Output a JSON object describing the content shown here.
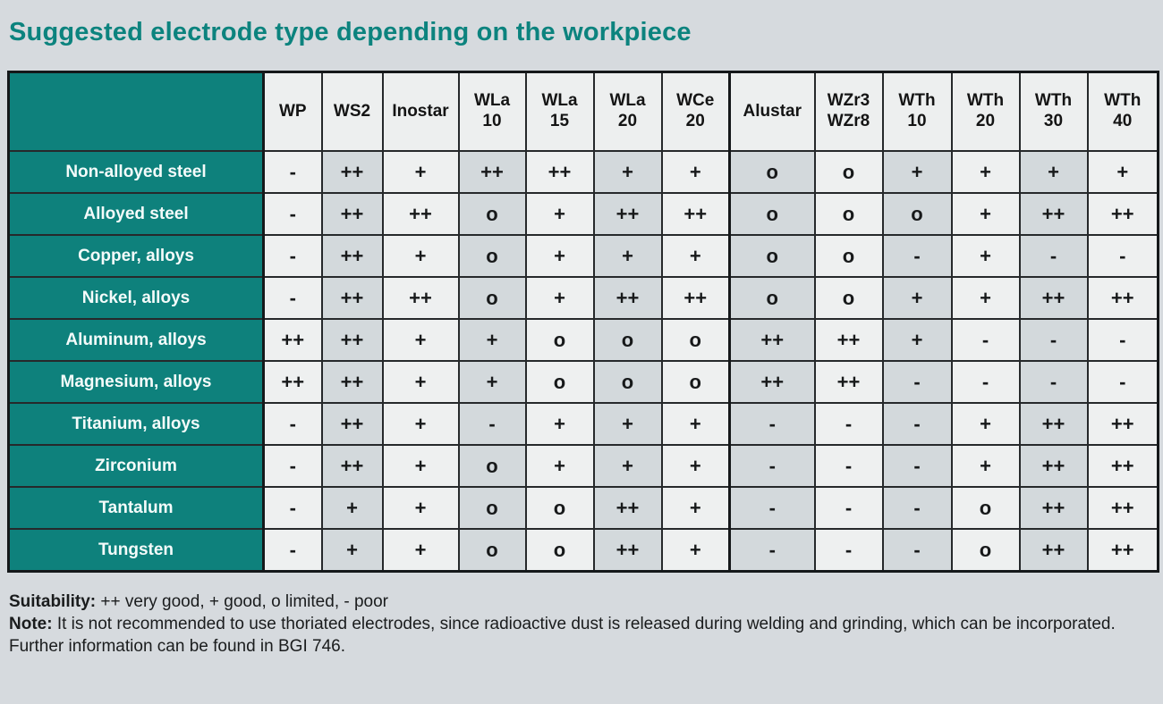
{
  "title": "Suggested electrode type depending on the workpiece",
  "table": {
    "columns": [
      {
        "id": "wp",
        "lines": [
          "WP"
        ]
      },
      {
        "id": "ws2",
        "lines": [
          "WS2"
        ]
      },
      {
        "id": "inostar",
        "lines": [
          "Inostar"
        ]
      },
      {
        "id": "wla10",
        "lines": [
          "WLa",
          "10"
        ]
      },
      {
        "id": "wla15",
        "lines": [
          "WLa",
          "15"
        ]
      },
      {
        "id": "wla20",
        "lines": [
          "WLa",
          "20"
        ]
      },
      {
        "id": "wce20",
        "lines": [
          "WCe",
          "20"
        ]
      },
      {
        "id": "alustar",
        "lines": [
          "Alustar"
        ]
      },
      {
        "id": "wzr3-wzr8",
        "lines": [
          "WZr3",
          "WZr8"
        ]
      },
      {
        "id": "wth10",
        "lines": [
          "WTh",
          "10"
        ]
      },
      {
        "id": "wth20",
        "lines": [
          "WTh",
          "20"
        ]
      },
      {
        "id": "wth30",
        "lines": [
          "WTh",
          "30"
        ]
      },
      {
        "id": "wth40",
        "lines": [
          "WTh",
          "40"
        ]
      }
    ],
    "rows": [
      {
        "label": "Non-alloyed steel",
        "values": [
          "-",
          "++",
          "+",
          "++",
          "++",
          "+",
          "+",
          "o",
          "o",
          "+",
          "+",
          "+",
          "+"
        ]
      },
      {
        "label": "Alloyed steel",
        "values": [
          "-",
          "++",
          "++",
          "o",
          "+",
          "++",
          "++",
          "o",
          "o",
          "o",
          "+",
          "++",
          "++"
        ]
      },
      {
        "label": "Copper, alloys",
        "values": [
          "-",
          "++",
          "+",
          "o",
          "+",
          "+",
          "+",
          "o",
          "o",
          "-",
          "+",
          "-",
          "-"
        ]
      },
      {
        "label": "Nickel, alloys",
        "values": [
          "-",
          "++",
          "++",
          "o",
          "+",
          "++",
          "++",
          "o",
          "o",
          "+",
          "+",
          "++",
          "++"
        ]
      },
      {
        "label": "Aluminum, alloys",
        "values": [
          "++",
          "++",
          "+",
          "+",
          "o",
          "o",
          "o",
          "++",
          "++",
          "+",
          "-",
          "-",
          "-"
        ]
      },
      {
        "label": "Magnesium, alloys",
        "values": [
          "++",
          "++",
          "+",
          "+",
          "o",
          "o",
          "o",
          "++",
          "++",
          "-",
          "-",
          "-",
          "-"
        ]
      },
      {
        "label": "Titanium, alloys",
        "values": [
          "-",
          "++",
          "+",
          "-",
          "+",
          "+",
          "+",
          "-",
          "-",
          "-",
          "+",
          "++",
          "++"
        ]
      },
      {
        "label": "Zirconium",
        "values": [
          "-",
          "++",
          "+",
          "o",
          "+",
          "+",
          "+",
          "-",
          "-",
          "-",
          "+",
          "++",
          "++"
        ]
      },
      {
        "label": "Tantalum",
        "values": [
          "-",
          "+",
          "+",
          "o",
          "o",
          "++",
          "+",
          "-",
          "-",
          "-",
          "o",
          "++",
          "++"
        ]
      },
      {
        "label": "Tungsten",
        "values": [
          "-",
          "+",
          "+",
          "o",
          "o",
          "++",
          "+",
          "-",
          "-",
          "-",
          "o",
          "++",
          "++"
        ]
      }
    ]
  },
  "footer": {
    "suitability_label": "Suitability:",
    "suitability_text": " ++ very good, + good, o limited, - poor",
    "note_label": "Note:",
    "note_text": " It is not recommended to use thoriated electrodes, since radioactive dust is released during welding and grinding, which can be incorporated. Further information can be found in BGI 746."
  },
  "colors": {
    "teal": "#0e817c",
    "title_teal": "#0c837e",
    "cell_light": "#eef0f0",
    "cell_dark": "#d3d9dc",
    "page_background": "#d6dade",
    "border": "#26292b"
  }
}
